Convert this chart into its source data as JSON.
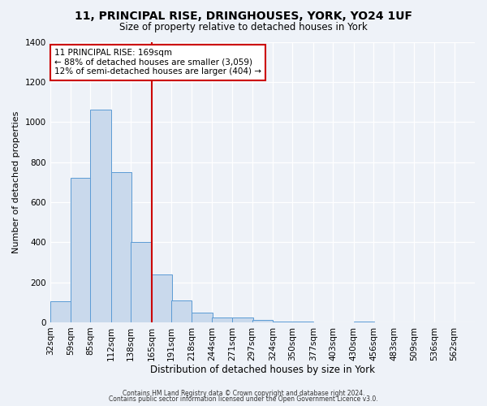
{
  "title": "11, PRINCIPAL RISE, DRINGHOUSES, YORK, YO24 1UF",
  "subtitle": "Size of property relative to detached houses in York",
  "xlabel": "Distribution of detached houses by size in York",
  "ylabel": "Number of detached properties",
  "bin_labels": [
    "32sqm",
    "59sqm",
    "85sqm",
    "112sqm",
    "138sqm",
    "165sqm",
    "191sqm",
    "218sqm",
    "244sqm",
    "271sqm",
    "297sqm",
    "324sqm",
    "350sqm",
    "377sqm",
    "403sqm",
    "430sqm",
    "456sqm",
    "483sqm",
    "509sqm",
    "536sqm",
    "562sqm"
  ],
  "bin_lefts": [
    32,
    59,
    85,
    112,
    138,
    165,
    191,
    218,
    244,
    271,
    297,
    324,
    350,
    377,
    403,
    430,
    456,
    483,
    509,
    536,
    562
  ],
  "bar_values": [
    105,
    720,
    1060,
    750,
    400,
    240,
    110,
    48,
    25,
    25,
    10,
    5,
    3,
    0,
    0,
    3,
    0,
    0,
    0,
    0
  ],
  "bar_color": "#c9d9ec",
  "bar_edge_color": "#5b9bd5",
  "vline_x": 165,
  "vline_color": "#cc0000",
  "annotation_text": "11 PRINCIPAL RISE: 169sqm\n← 88% of detached houses are smaller (3,059)\n12% of semi-detached houses are larger (404) →",
  "annotation_box_color": "#ffffff",
  "annotation_box_edge": "#cc0000",
  "ylim": [
    0,
    1400
  ],
  "yticks": [
    0,
    200,
    400,
    600,
    800,
    1000,
    1200,
    1400
  ],
  "footer1": "Contains HM Land Registry data © Crown copyright and database right 2024.",
  "footer2": "Contains public sector information licensed under the Open Government Licence v3.0.",
  "background_color": "#eef2f8",
  "plot_bg_color": "#eef2f8",
  "grid_color": "#ffffff",
  "bin_width": 27
}
